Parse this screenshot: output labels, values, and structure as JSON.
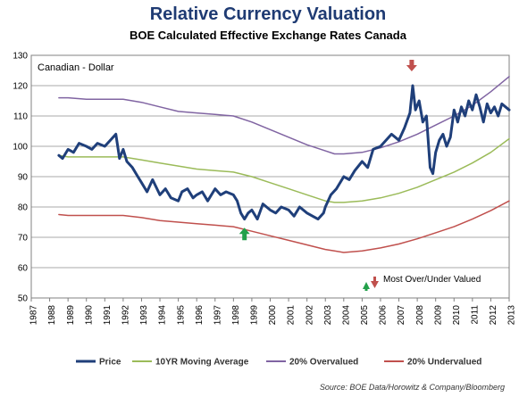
{
  "chart_data": {
    "type": "line",
    "title": "Relative Currency Valuation",
    "subtitle": "BOE Calculated Effective Exchange Rates Canada",
    "panel_label": "Canadian - Dollar",
    "annotation": "Most Over/Under Valued",
    "source": "Source: BOE Data/Horowitz & Company/Bloomberg",
    "xlim": [
      1987,
      2013
    ],
    "ylim": [
      50,
      130
    ],
    "x_ticks": [
      "1987",
      "1988",
      "1989",
      "1990",
      "1991",
      "1992",
      "1993",
      "1994",
      "1995",
      "1996",
      "1997",
      "1998",
      "1999",
      "2000",
      "2001",
      "2002",
      "2003",
      "2004",
      "2005",
      "2006",
      "2007",
      "2008",
      "2009",
      "2010",
      "2011",
      "2012",
      "2013"
    ],
    "y_ticks": [
      50,
      60,
      70,
      80,
      90,
      100,
      110,
      120,
      130
    ],
    "grid": true,
    "legend_position": "bottom",
    "markers": [
      {
        "name": "overvalued-arrow",
        "direction": "down",
        "x": 2007.7,
        "y": 120,
        "color": "#c0504d"
      },
      {
        "name": "undervalued-arrow",
        "direction": "up",
        "x": 1998.6,
        "y": 75.5,
        "color": "#22a04a"
      }
    ],
    "series": [
      {
        "name": "Price",
        "color": "#1f3f7a",
        "width": 3,
        "x": [
          1988.5,
          1988.7,
          1989.0,
          1989.3,
          1989.6,
          1990.0,
          1990.3,
          1990.6,
          1991.0,
          1991.3,
          1991.6,
          1991.8,
          1992.0,
          1992.2,
          1992.5,
          1992.8,
          1993.0,
          1993.3,
          1993.6,
          1994.0,
          1994.3,
          1994.6,
          1995.0,
          1995.2,
          1995.5,
          1995.8,
          1996.0,
          1996.3,
          1996.6,
          1997.0,
          1997.3,
          1997.6,
          1998.0,
          1998.2,
          1998.4,
          1998.6,
          1998.8,
          1999.0,
          1999.3,
          1999.6,
          2000.0,
          2000.3,
          2000.6,
          2001.0,
          2001.3,
          2001.6,
          2002.0,
          2002.3,
          2002.6,
          2002.9,
          2003.0,
          2003.3,
          2003.6,
          2004.0,
          2004.3,
          2004.6,
          2005.0,
          2005.3,
          2005.6,
          2006.0,
          2006.3,
          2006.6,
          2007.0,
          2007.3,
          2007.6,
          2007.75,
          2007.9,
          2008.1,
          2008.3,
          2008.5,
          2008.7,
          2008.85,
          2009.0,
          2009.2,
          2009.4,
          2009.6,
          2009.8,
          2010.0,
          2010.2,
          2010.4,
          2010.6,
          2010.8,
          2011.0,
          2011.2,
          2011.4,
          2011.6,
          2011.8,
          2012.0,
          2012.2,
          2012.4,
          2012.6,
          2012.8,
          2013.0
        ],
        "values": [
          97,
          96,
          99,
          98,
          101,
          100,
          99,
          101,
          100,
          102,
          104,
          96,
          99,
          95,
          93,
          90,
          88,
          85,
          89,
          84,
          86,
          83,
          82,
          85,
          86,
          83,
          84,
          85,
          82,
          86,
          84,
          85,
          84,
          82,
          78,
          76,
          78,
          79,
          76,
          81,
          79,
          78,
          80,
          79,
          77,
          80,
          78,
          77,
          76,
          78,
          80,
          84,
          86,
          90,
          89,
          92,
          95,
          93,
          99,
          100,
          102,
          104,
          102,
          106,
          111,
          120,
          112,
          115,
          108,
          110,
          93,
          91,
          98,
          102,
          104,
          100,
          103,
          112,
          108,
          113,
          110,
          115,
          112,
          117,
          113,
          108,
          114,
          111,
          113,
          110,
          114,
          113,
          112
        ]
      },
      {
        "name": "10YR Moving Average",
        "color": "#9bbb59",
        "width": 1.5,
        "x": [
          1988.5,
          1989.0,
          1990.0,
          1991.0,
          1992.0,
          1993.0,
          1994.0,
          1995.0,
          1996.0,
          1997.0,
          1998.0,
          1999.0,
          2000.0,
          2001.0,
          2002.0,
          2003.0,
          2003.5,
          2004.0,
          2005.0,
          2006.0,
          2007.0,
          2008.0,
          2009.0,
          2010.0,
          2011.0,
          2012.0,
          2013.0
        ],
        "values": [
          97.0,
          96.5,
          96.5,
          96.5,
          96.5,
          95.5,
          94.5,
          93.5,
          92.5,
          92.0,
          91.5,
          90.0,
          88.0,
          86.0,
          84.0,
          82.0,
          81.5,
          81.5,
          82.0,
          83.0,
          84.5,
          86.5,
          89.0,
          91.5,
          94.5,
          98.0,
          102.5
        ]
      },
      {
        "name": "20% Overvalued",
        "color": "#8064a2",
        "width": 1.5,
        "x": [
          1988.5,
          1989.0,
          1990.0,
          1991.0,
          1992.0,
          1993.0,
          1994.0,
          1995.0,
          1996.0,
          1997.0,
          1998.0,
          1999.0,
          2000.0,
          2001.0,
          2002.0,
          2003.0,
          2003.5,
          2004.0,
          2005.0,
          2006.0,
          2007.0,
          2008.0,
          2009.0,
          2010.0,
          2011.0,
          2012.0,
          2013.0
        ],
        "values": [
          116.0,
          116.0,
          115.5,
          115.5,
          115.5,
          114.5,
          113.0,
          111.5,
          111.0,
          110.5,
          110.0,
          108.0,
          105.5,
          103.0,
          100.5,
          98.5,
          97.5,
          97.5,
          98.0,
          99.5,
          101.5,
          104.0,
          107.0,
          110.0,
          113.5,
          118.0,
          123.0
        ]
      },
      {
        "name": "20% Undervalued",
        "color": "#c0504d",
        "width": 1.5,
        "x": [
          1988.5,
          1989.0,
          1990.0,
          1991.0,
          1992.0,
          1993.0,
          1994.0,
          1995.0,
          1996.0,
          1997.0,
          1998.0,
          1999.0,
          2000.0,
          2001.0,
          2002.0,
          2003.0,
          2003.5,
          2004.0,
          2005.0,
          2006.0,
          2007.0,
          2008.0,
          2009.0,
          2010.0,
          2011.0,
          2012.0,
          2013.0
        ],
        "values": [
          77.5,
          77.2,
          77.2,
          77.2,
          77.2,
          76.5,
          75.5,
          75.0,
          74.5,
          74.0,
          73.5,
          72.0,
          70.5,
          69.0,
          67.5,
          66.0,
          65.5,
          65.0,
          65.5,
          66.5,
          67.8,
          69.5,
          71.5,
          73.5,
          76.0,
          78.8,
          82.0
        ]
      }
    ]
  }
}
